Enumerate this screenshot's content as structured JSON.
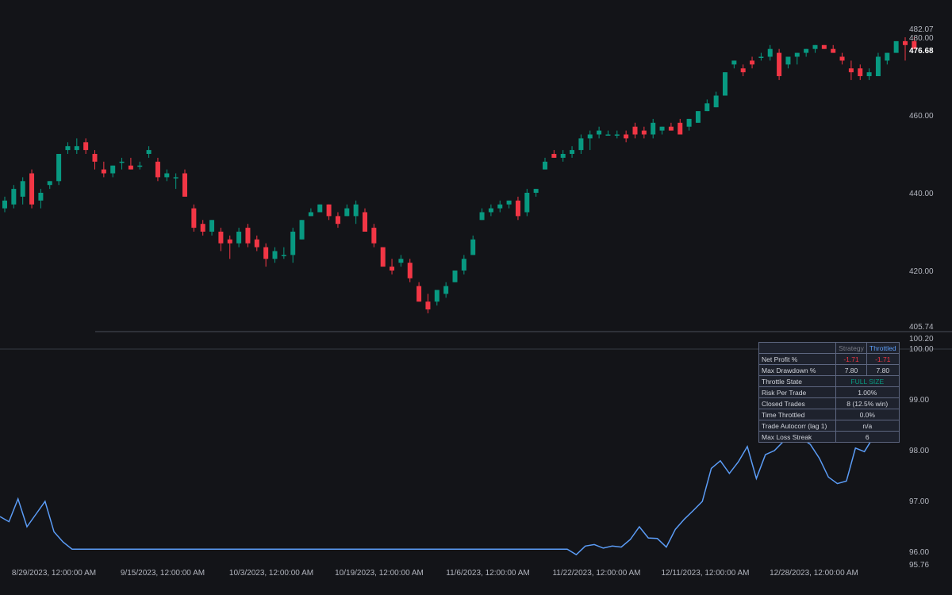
{
  "colors": {
    "background": "#131418",
    "up": "#089981",
    "down": "#f23645",
    "equity_line": "#5b9cf6",
    "separator": "#363a45"
  },
  "price_axis": {
    "labels": [
      "482.07",
      "480.00",
      "460.00",
      "440.00",
      "420.00",
      "405.74"
    ],
    "last_price": "476.68"
  },
  "equity_axis": {
    "labels": [
      "100.20",
      "100.00",
      "99.00",
      "98.00",
      "97.00",
      "96.00",
      "95.76"
    ]
  },
  "time_axis": {
    "labels": [
      "8/29/2023, 12:00:00 AM",
      "9/15/2023, 12:00:00 AM",
      "10/3/2023, 12:00:00 AM",
      "10/19/2023, 12:00:00 AM",
      "11/6/2023, 12:00:00 AM",
      "11/22/2023, 12:00:00 AM",
      "12/11/2023, 12:00:00 AM",
      "12/28/2023, 12:00:00 AM"
    ]
  },
  "stats_table": {
    "header": [
      "",
      "Strategy",
      "Throttled"
    ],
    "rows": [
      {
        "label": "Net Profit %",
        "strategy": "-1.71",
        "throttled": "-1.71"
      },
      {
        "label": "Max Drawdown %",
        "strategy": "7.80",
        "throttled": "7.80"
      },
      {
        "label": "Throttle State",
        "value": "FULL SIZE"
      },
      {
        "label": "Risk Per Trade",
        "value": "1.00%"
      },
      {
        "label": "Closed Trades",
        "value": "8 (12.5% win)"
      },
      {
        "label": "Time Throttled",
        "value": "0.0%"
      },
      {
        "label": "Trade Autocorr (lag 1)",
        "value": "n/a"
      },
      {
        "label": "Max Loss Streak",
        "value": "6"
      }
    ]
  },
  "chart_data": [
    {
      "type": "candlestick",
      "ylim": [
        405.74,
        482.07
      ],
      "candles": [
        {
          "o": 436,
          "h": 439,
          "l": 435,
          "c": 438
        },
        {
          "o": 437,
          "h": 442,
          "l": 436,
          "c": 441
        },
        {
          "o": 439,
          "h": 444,
          "l": 437,
          "c": 443
        },
        {
          "o": 445,
          "h": 446,
          "l": 436,
          "c": 437
        },
        {
          "o": 438,
          "h": 441,
          "l": 436,
          "c": 440
        },
        {
          "o": 442,
          "h": 443,
          "l": 441,
          "c": 443
        },
        {
          "o": 443,
          "h": 450,
          "l": 442,
          "c": 450
        },
        {
          "o": 451,
          "h": 453,
          "l": 450,
          "c": 452
        },
        {
          "o": 451,
          "h": 454,
          "l": 450,
          "c": 452
        },
        {
          "o": 453,
          "h": 454,
          "l": 450,
          "c": 451
        },
        {
          "o": 450,
          "h": 451,
          "l": 446,
          "c": 448
        },
        {
          "o": 446,
          "h": 448,
          "l": 444,
          "c": 445
        },
        {
          "o": 445,
          "h": 447,
          "l": 444,
          "c": 447
        },
        {
          "o": 448,
          "h": 449,
          "l": 446,
          "c": 448
        },
        {
          "o": 447,
          "h": 449,
          "l": 446,
          "c": 446
        },
        {
          "o": 447,
          "h": 448,
          "l": 446,
          "c": 447
        },
        {
          "o": 450,
          "h": 452,
          "l": 449,
          "c": 451
        },
        {
          "o": 448,
          "h": 449,
          "l": 443,
          "c": 444
        },
        {
          "o": 444,
          "h": 446,
          "l": 443,
          "c": 445
        },
        {
          "o": 444,
          "h": 445,
          "l": 441,
          "c": 444
        },
        {
          "o": 445,
          "h": 446,
          "l": 439,
          "c": 439
        },
        {
          "o": 436,
          "h": 437,
          "l": 430,
          "c": 431
        },
        {
          "o": 432,
          "h": 433,
          "l": 429,
          "c": 430
        },
        {
          "o": 430,
          "h": 433,
          "l": 429,
          "c": 433
        },
        {
          "o": 430,
          "h": 431,
          "l": 425,
          "c": 427
        },
        {
          "o": 428,
          "h": 429,
          "l": 423,
          "c": 427
        },
        {
          "o": 427,
          "h": 431,
          "l": 426,
          "c": 430
        },
        {
          "o": 431,
          "h": 432,
          "l": 426,
          "c": 427
        },
        {
          "o": 428,
          "h": 429,
          "l": 425,
          "c": 426
        },
        {
          "o": 426,
          "h": 427,
          "l": 421,
          "c": 423
        },
        {
          "o": 423,
          "h": 426,
          "l": 422,
          "c": 425
        },
        {
          "o": 424,
          "h": 426,
          "l": 423,
          "c": 424
        },
        {
          "o": 424,
          "h": 431,
          "l": 422,
          "c": 430
        },
        {
          "o": 428,
          "h": 433,
          "l": 428,
          "c": 433
        },
        {
          "o": 434,
          "h": 436,
          "l": 434,
          "c": 435
        },
        {
          "o": 435,
          "h": 437,
          "l": 435,
          "c": 437
        },
        {
          "o": 437,
          "h": 437,
          "l": 433,
          "c": 434
        },
        {
          "o": 434,
          "h": 435,
          "l": 431,
          "c": 432
        },
        {
          "o": 434,
          "h": 437,
          "l": 434,
          "c": 436
        },
        {
          "o": 434,
          "h": 438,
          "l": 432,
          "c": 437
        },
        {
          "o": 435,
          "h": 436,
          "l": 430,
          "c": 430
        },
        {
          "o": 431,
          "h": 432,
          "l": 426,
          "c": 427
        },
        {
          "o": 426,
          "h": 426,
          "l": 421,
          "c": 421
        },
        {
          "o": 421,
          "h": 423,
          "l": 419,
          "c": 420
        },
        {
          "o": 422,
          "h": 424,
          "l": 421,
          "c": 423
        },
        {
          "o": 422,
          "h": 423,
          "l": 417,
          "c": 418
        },
        {
          "o": 416,
          "h": 417,
          "l": 412,
          "c": 412
        },
        {
          "o": 412,
          "h": 414,
          "l": 409,
          "c": 410
        },
        {
          "o": 412,
          "h": 415,
          "l": 411,
          "c": 415
        },
        {
          "o": 414,
          "h": 417,
          "l": 413,
          "c": 416
        },
        {
          "o": 417,
          "h": 420,
          "l": 417,
          "c": 420
        },
        {
          "o": 420,
          "h": 424,
          "l": 419,
          "c": 423
        },
        {
          "o": 424,
          "h": 429,
          "l": 424,
          "c": 428
        },
        {
          "o": 433,
          "h": 436,
          "l": 433,
          "c": 435
        },
        {
          "o": 435,
          "h": 437,
          "l": 434,
          "c": 436
        },
        {
          "o": 436,
          "h": 438,
          "l": 435,
          "c": 437
        },
        {
          "o": 437,
          "h": 438,
          "l": 436,
          "c": 438
        },
        {
          "o": 438,
          "h": 439,
          "l": 433,
          "c": 434
        },
        {
          "o": 435,
          "h": 441,
          "l": 434,
          "c": 440
        },
        {
          "o": 440,
          "h": 441,
          "l": 439,
          "c": 441
        },
        {
          "o": 446,
          "h": 449,
          "l": 446,
          "c": 448
        },
        {
          "o": 450,
          "h": 451,
          "l": 449,
          "c": 449
        },
        {
          "o": 449,
          "h": 451,
          "l": 448,
          "c": 450
        },
        {
          "o": 450,
          "h": 452,
          "l": 449,
          "c": 451
        },
        {
          "o": 451,
          "h": 455,
          "l": 450,
          "c": 454
        },
        {
          "o": 454,
          "h": 456,
          "l": 451,
          "c": 455
        },
        {
          "o": 455,
          "h": 457,
          "l": 454,
          "c": 456
        },
        {
          "o": 455,
          "h": 456,
          "l": 455,
          "c": 455
        },
        {
          "o": 455,
          "h": 456,
          "l": 454,
          "c": 455
        },
        {
          "o": 455,
          "h": 456,
          "l": 453,
          "c": 454
        },
        {
          "o": 457,
          "h": 458,
          "l": 454,
          "c": 455
        },
        {
          "o": 456,
          "h": 457,
          "l": 454,
          "c": 455
        },
        {
          "o": 455,
          "h": 459,
          "l": 454,
          "c": 458
        },
        {
          "o": 456,
          "h": 457,
          "l": 455,
          "c": 457
        },
        {
          "o": 457,
          "h": 458,
          "l": 456,
          "c": 456
        },
        {
          "o": 458,
          "h": 459,
          "l": 455,
          "c": 455
        },
        {
          "o": 457,
          "h": 459,
          "l": 456,
          "c": 459
        },
        {
          "o": 458,
          "h": 461,
          "l": 458,
          "c": 461
        },
        {
          "o": 461,
          "h": 464,
          "l": 461,
          "c": 463
        },
        {
          "o": 462,
          "h": 466,
          "l": 462,
          "c": 465
        },
        {
          "o": 465,
          "h": 471,
          "l": 465,
          "c": 471
        },
        {
          "o": 473,
          "h": 474,
          "l": 472,
          "c": 474
        },
        {
          "o": 472,
          "h": 473,
          "l": 470,
          "c": 471
        },
        {
          "o": 474,
          "h": 475,
          "l": 472,
          "c": 473
        },
        {
          "o": 475,
          "h": 476,
          "l": 474,
          "c": 475
        },
        {
          "o": 475,
          "h": 478,
          "l": 474,
          "c": 477
        },
        {
          "o": 476,
          "h": 477,
          "l": 469,
          "c": 470
        },
        {
          "o": 473,
          "h": 475,
          "l": 472,
          "c": 475
        },
        {
          "o": 475,
          "h": 476,
          "l": 473,
          "c": 476
        },
        {
          "o": 476,
          "h": 477,
          "l": 475,
          "c": 477
        },
        {
          "o": 477,
          "h": 478,
          "l": 476,
          "c": 478
        },
        {
          "o": 478,
          "h": 478,
          "l": 477,
          "c": 477
        },
        {
          "o": 477,
          "h": 478,
          "l": 476,
          "c": 476
        },
        {
          "o": 475,
          "h": 476,
          "l": 473,
          "c": 474
        },
        {
          "o": 472,
          "h": 474,
          "l": 469,
          "c": 471
        },
        {
          "o": 472,
          "h": 473,
          "l": 469,
          "c": 470
        },
        {
          "o": 470,
          "h": 472,
          "l": 469,
          "c": 471
        },
        {
          "o": 470,
          "h": 476,
          "l": 470,
          "c": 475
        },
        {
          "o": 474,
          "h": 476,
          "l": 473,
          "c": 476
        },
        {
          "o": 476,
          "h": 479,
          "l": 476,
          "c": 479
        },
        {
          "o": 479,
          "h": 480,
          "l": 474,
          "c": 478
        },
        {
          "o": 479,
          "h": 480,
          "l": 477,
          "c": 477
        }
      ]
    },
    {
      "type": "line",
      "name": "",
      "ylim": [
        95.76,
        100.2
      ],
      "values": [
        96.7,
        96.6,
        97.05,
        96.5,
        96.75,
        97.0,
        96.4,
        96.2,
        96.06,
        96.06,
        96.06,
        96.06,
        96.06,
        96.06,
        96.06,
        96.06,
        96.06,
        96.06,
        96.06,
        96.06,
        96.06,
        96.06,
        96.06,
        96.06,
        96.06,
        96.06,
        96.06,
        96.06,
        96.06,
        96.06,
        96.06,
        96.06,
        96.06,
        96.06,
        96.06,
        96.06,
        96.06,
        96.06,
        96.06,
        96.06,
        96.06,
        96.06,
        96.06,
        96.06,
        96.06,
        96.06,
        96.06,
        96.06,
        96.06,
        96.06,
        96.06,
        96.06,
        96.06,
        96.06,
        96.06,
        96.06,
        96.06,
        96.06,
        96.06,
        96.06,
        96.06,
        96.06,
        96.06,
        96.06,
        95.95,
        96.12,
        96.15,
        96.08,
        96.12,
        96.1,
        96.25,
        96.5,
        96.28,
        96.27,
        96.1,
        96.45,
        96.65,
        96.82,
        97.0,
        97.65,
        97.8,
        97.55,
        97.78,
        98.08,
        97.45,
        97.92,
        98.0,
        98.18,
        98.25,
        98.25,
        98.12,
        97.85,
        97.48,
        97.35,
        97.4,
        98.05,
        97.98,
        98.27,
        98.25,
        98.27
      ]
    }
  ]
}
